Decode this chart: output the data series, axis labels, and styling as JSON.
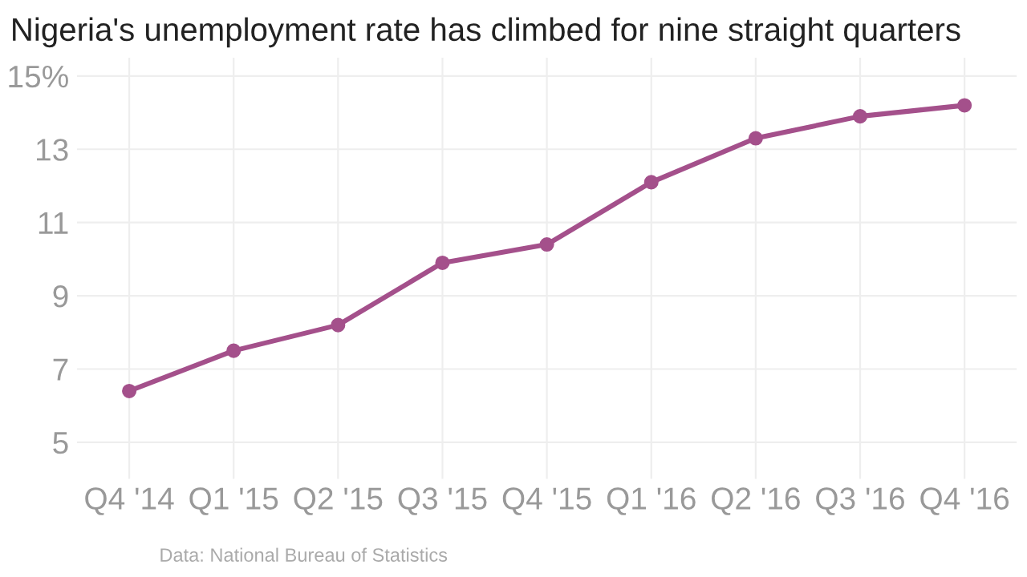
{
  "chart_data": {
    "type": "line",
    "title": "Nigeria's unemployment rate has climbed for nine straight quarters",
    "categories": [
      "Q4 '14",
      "Q1 '15",
      "Q2 '15",
      "Q3 '15",
      "Q4 '15",
      "Q1 '16",
      "Q2 '16",
      "Q3 '16",
      "Q4 '16"
    ],
    "series": [
      {
        "color": "#a4508b",
        "values": [
          6.4,
          7.5,
          8.2,
          9.9,
          10.4,
          12.1,
          13.3,
          13.9,
          14.2
        ]
      }
    ],
    "ylim": [
      4,
      15.5
    ],
    "yticks": [
      5,
      7,
      9,
      11,
      13,
      {
        "value": 15,
        "label": "15%"
      }
    ],
    "grid": true,
    "marker": "circle",
    "line_style": "solid",
    "annotations": [
      "Data: National Bureau of Statistics"
    ]
  }
}
